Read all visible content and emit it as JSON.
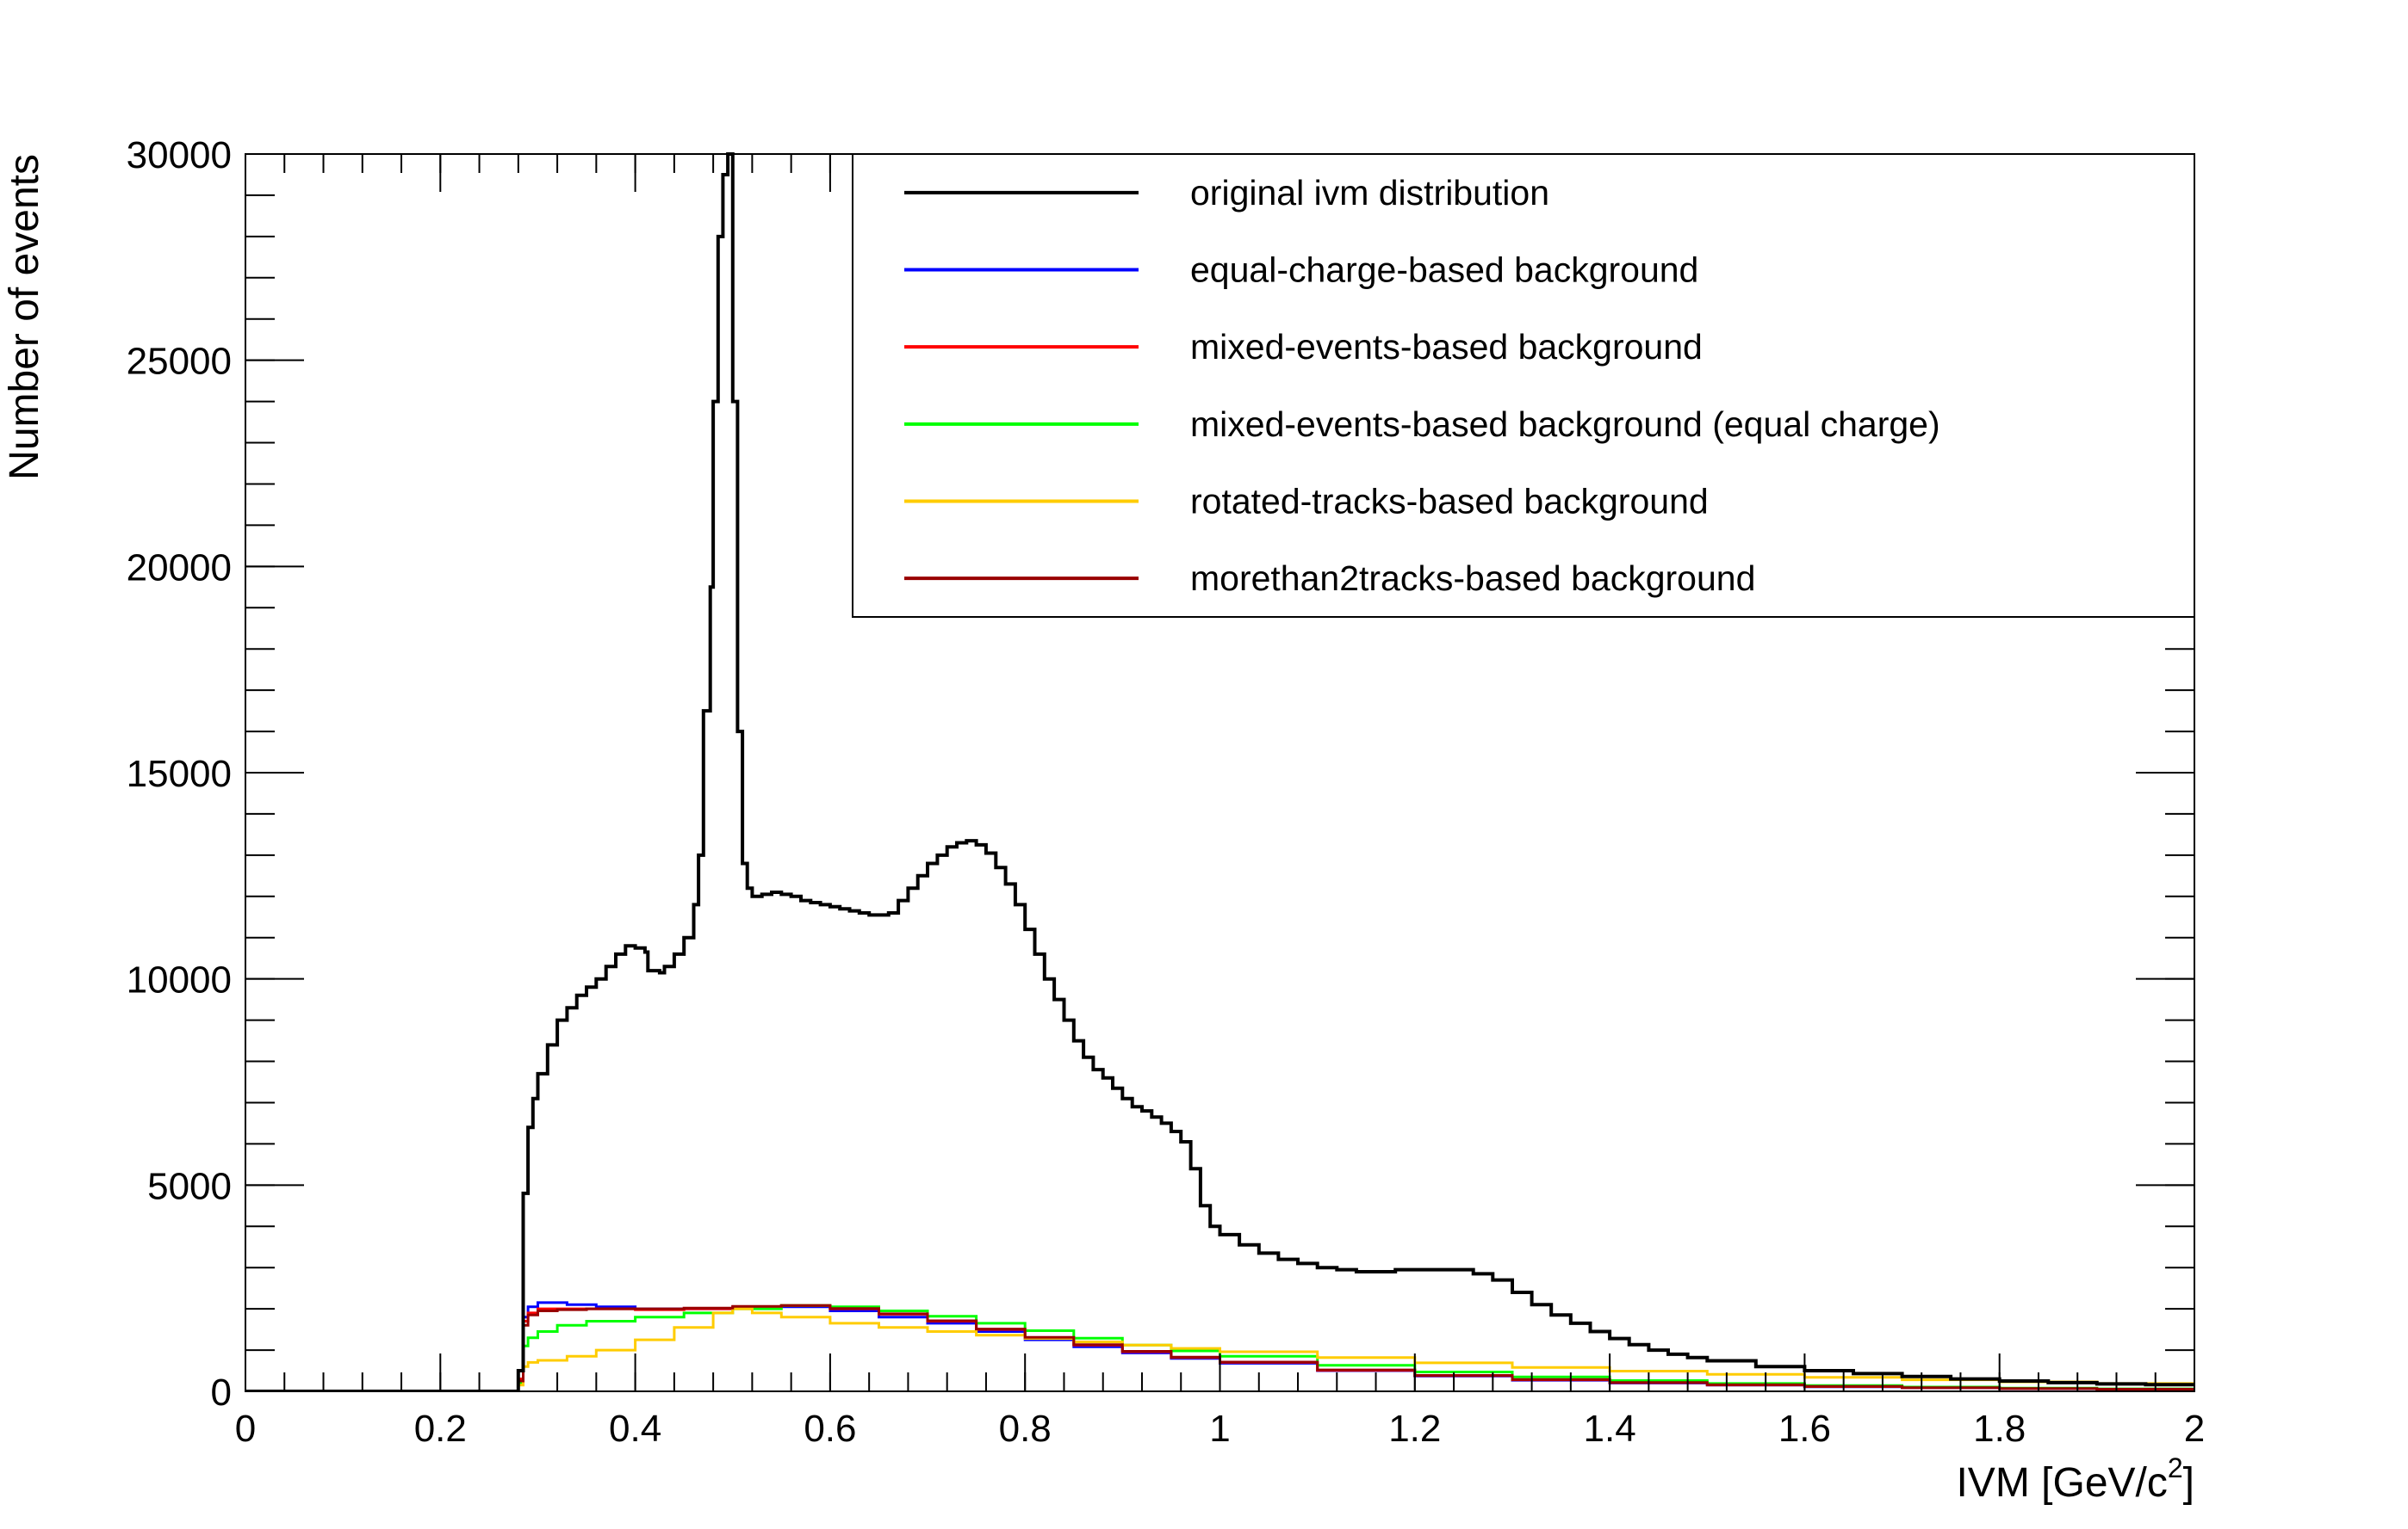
{
  "chart_data": {
    "type": "line",
    "title": "",
    "xlabel": "IVM [GeV/c",
    "xlabel_sup": "2",
    "xlabel_close": "]",
    "ylabel": "Number of events",
    "xlim": [
      0,
      2
    ],
    "ylim": [
      0,
      30000
    ],
    "x_ticks": [
      0,
      0.2,
      0.4,
      0.6,
      0.8,
      1,
      1.2,
      1.4,
      1.6,
      1.8,
      2
    ],
    "x_tick_labels": [
      "0",
      "0.2",
      "0.4",
      "0.6",
      "0.8",
      "1",
      "1.2",
      "1.4",
      "1.6",
      "1.8",
      "2"
    ],
    "y_ticks": [
      0,
      5000,
      10000,
      15000,
      20000,
      25000,
      30000
    ],
    "y_tick_labels": [
      "0",
      "5000",
      "10000",
      "15000",
      "20000",
      "25000",
      "30000"
    ],
    "grid": false,
    "legend_position": "top-right",
    "series": [
      {
        "name": "original ivm distribution",
        "color": "#000000",
        "points": [
          [
            0,
            0
          ],
          [
            0.276,
            0
          ],
          [
            0.28,
            500
          ],
          [
            0.285,
            4800
          ],
          [
            0.29,
            6400
          ],
          [
            0.295,
            7100
          ],
          [
            0.3,
            7700
          ],
          [
            0.31,
            8400
          ],
          [
            0.32,
            9000
          ],
          [
            0.33,
            9300
          ],
          [
            0.34,
            9600
          ],
          [
            0.35,
            9800
          ],
          [
            0.36,
            10000
          ],
          [
            0.37,
            10300
          ],
          [
            0.38,
            10600
          ],
          [
            0.39,
            10800
          ],
          [
            0.4,
            10750
          ],
          [
            0.41,
            10650
          ],
          [
            0.413,
            10200
          ],
          [
            0.425,
            10150
          ],
          [
            0.43,
            10300
          ],
          [
            0.44,
            10600
          ],
          [
            0.45,
            11000
          ],
          [
            0.46,
            11800
          ],
          [
            0.465,
            13000
          ],
          [
            0.47,
            16500
          ],
          [
            0.477,
            19500
          ],
          [
            0.48,
            24000
          ],
          [
            0.485,
            28000
          ],
          [
            0.49,
            29500
          ],
          [
            0.495,
            30000
          ],
          [
            0.5,
            24000
          ],
          [
            0.505,
            16000
          ],
          [
            0.51,
            12800
          ],
          [
            0.515,
            12200
          ],
          [
            0.52,
            12000
          ],
          [
            0.53,
            12050
          ],
          [
            0.54,
            12100
          ],
          [
            0.55,
            12050
          ],
          [
            0.56,
            12000
          ],
          [
            0.57,
            11900
          ],
          [
            0.58,
            11850
          ],
          [
            0.59,
            11800
          ],
          [
            0.6,
            11750
          ],
          [
            0.61,
            11700
          ],
          [
            0.62,
            11650
          ],
          [
            0.63,
            11600
          ],
          [
            0.64,
            11550
          ],
          [
            0.65,
            11550
          ],
          [
            0.66,
            11600
          ],
          [
            0.67,
            11900
          ],
          [
            0.68,
            12200
          ],
          [
            0.69,
            12500
          ],
          [
            0.7,
            12800
          ],
          [
            0.71,
            13000
          ],
          [
            0.72,
            13200
          ],
          [
            0.73,
            13300
          ],
          [
            0.74,
            13350
          ],
          [
            0.75,
            13250
          ],
          [
            0.76,
            13050
          ],
          [
            0.77,
            12700
          ],
          [
            0.78,
            12300
          ],
          [
            0.79,
            11800
          ],
          [
            0.8,
            11200
          ],
          [
            0.81,
            10600
          ],
          [
            0.82,
            10000
          ],
          [
            0.83,
            9500
          ],
          [
            0.84,
            9000
          ],
          [
            0.85,
            8500
          ],
          [
            0.86,
            8100
          ],
          [
            0.87,
            7800
          ],
          [
            0.88,
            7600
          ],
          [
            0.89,
            7350
          ],
          [
            0.9,
            7100
          ],
          [
            0.91,
            6900
          ],
          [
            0.92,
            6800
          ],
          [
            0.93,
            6650
          ],
          [
            0.94,
            6500
          ],
          [
            0.95,
            6300
          ],
          [
            0.96,
            6050
          ],
          [
            0.97,
            5400
          ],
          [
            0.98,
            4500
          ],
          [
            0.99,
            4000
          ],
          [
            1,
            3800
          ],
          [
            1.02,
            3550
          ],
          [
            1.04,
            3350
          ],
          [
            1.06,
            3200
          ],
          [
            1.08,
            3100
          ],
          [
            1.1,
            3000
          ],
          [
            1.12,
            2950
          ],
          [
            1.14,
            2900
          ],
          [
            1.16,
            2900
          ],
          [
            1.18,
            2950
          ],
          [
            1.2,
            2950
          ],
          [
            1.22,
            2950
          ],
          [
            1.24,
            2950
          ],
          [
            1.26,
            2850
          ],
          [
            1.28,
            2700
          ],
          [
            1.3,
            2400
          ],
          [
            1.32,
            2100
          ],
          [
            1.34,
            1850
          ],
          [
            1.36,
            1650
          ],
          [
            1.38,
            1450
          ],
          [
            1.4,
            1280
          ],
          [
            1.42,
            1130
          ],
          [
            1.44,
            1000
          ],
          [
            1.46,
            900
          ],
          [
            1.48,
            820
          ],
          [
            1.5,
            740
          ],
          [
            1.55,
            600
          ],
          [
            1.6,
            500
          ],
          [
            1.65,
            430
          ],
          [
            1.7,
            360
          ],
          [
            1.75,
            300
          ],
          [
            1.8,
            250
          ],
          [
            1.85,
            210
          ],
          [
            1.9,
            180
          ],
          [
            1.95,
            160
          ],
          [
            2,
            140
          ]
        ]
      },
      {
        "name": "equal-charge-based background",
        "color": "#0000ff",
        "points": [
          [
            0.276,
            0
          ],
          [
            0.28,
            300
          ],
          [
            0.285,
            1800
          ],
          [
            0.29,
            2050
          ],
          [
            0.3,
            2150
          ],
          [
            0.31,
            2150
          ],
          [
            0.33,
            2100
          ],
          [
            0.36,
            2050
          ],
          [
            0.4,
            2000
          ],
          [
            0.45,
            2000
          ],
          [
            0.5,
            2050
          ],
          [
            0.55,
            2050
          ],
          [
            0.6,
            1950
          ],
          [
            0.65,
            1800
          ],
          [
            0.7,
            1650
          ],
          [
            0.75,
            1450
          ],
          [
            0.8,
            1250
          ],
          [
            0.85,
            1080
          ],
          [
            0.9,
            930
          ],
          [
            0.95,
            800
          ],
          [
            1,
            680
          ],
          [
            1.1,
            500
          ],
          [
            1.2,
            370
          ],
          [
            1.3,
            270
          ],
          [
            1.4,
            200
          ],
          [
            1.5,
            150
          ],
          [
            1.6,
            110
          ],
          [
            1.7,
            85
          ],
          [
            1.8,
            65
          ],
          [
            1.9,
            50
          ],
          [
            2,
            40
          ]
        ]
      },
      {
        "name": "mixed-events-based background",
        "color": "#ff0000",
        "points": [
          [
            0.276,
            0
          ],
          [
            0.28,
            300
          ],
          [
            0.285,
            1700
          ],
          [
            0.29,
            1900
          ],
          [
            0.3,
            2000
          ],
          [
            0.32,
            2000
          ],
          [
            0.35,
            2000
          ],
          [
            0.4,
            1980
          ],
          [
            0.45,
            2000
          ],
          [
            0.5,
            2050
          ],
          [
            0.55,
            2080
          ],
          [
            0.6,
            2000
          ],
          [
            0.65,
            1870
          ],
          [
            0.7,
            1700
          ],
          [
            0.75,
            1500
          ],
          [
            0.8,
            1300
          ],
          [
            0.85,
            1120
          ],
          [
            0.9,
            960
          ],
          [
            0.95,
            820
          ],
          [
            1,
            700
          ],
          [
            1.1,
            510
          ],
          [
            1.2,
            380
          ],
          [
            1.3,
            280
          ],
          [
            1.4,
            210
          ],
          [
            1.5,
            155
          ],
          [
            1.6,
            115
          ],
          [
            1.7,
            88
          ],
          [
            1.8,
            68
          ],
          [
            1.9,
            52
          ],
          [
            2,
            42
          ]
        ]
      },
      {
        "name": "mixed-events-based background (equal charge)",
        "color": "#00ff00",
        "points": [
          [
            0.276,
            0
          ],
          [
            0.28,
            200
          ],
          [
            0.285,
            1100
          ],
          [
            0.29,
            1300
          ],
          [
            0.3,
            1450
          ],
          [
            0.32,
            1600
          ],
          [
            0.35,
            1700
          ],
          [
            0.4,
            1800
          ],
          [
            0.45,
            1900
          ],
          [
            0.5,
            2000
          ],
          [
            0.55,
            2080
          ],
          [
            0.6,
            2050
          ],
          [
            0.65,
            1950
          ],
          [
            0.7,
            1820
          ],
          [
            0.75,
            1650
          ],
          [
            0.8,
            1470
          ],
          [
            0.85,
            1290
          ],
          [
            0.9,
            1120
          ],
          [
            0.95,
            980
          ],
          [
            1,
            850
          ],
          [
            1.1,
            630
          ],
          [
            1.2,
            470
          ],
          [
            1.3,
            350
          ],
          [
            1.4,
            260
          ],
          [
            1.5,
            190
          ],
          [
            1.6,
            140
          ],
          [
            1.7,
            105
          ],
          [
            1.8,
            80
          ],
          [
            1.9,
            60
          ],
          [
            2,
            45
          ]
        ]
      },
      {
        "name": "rotated-tracks-based background",
        "color": "#ffcc00",
        "points": [
          [
            0.276,
            0
          ],
          [
            0.28,
            150
          ],
          [
            0.285,
            600
          ],
          [
            0.29,
            700
          ],
          [
            0.3,
            750
          ],
          [
            0.33,
            850
          ],
          [
            0.36,
            1000
          ],
          [
            0.4,
            1250
          ],
          [
            0.44,
            1550
          ],
          [
            0.48,
            1900
          ],
          [
            0.5,
            2000
          ],
          [
            0.52,
            1900
          ],
          [
            0.55,
            1800
          ],
          [
            0.6,
            1650
          ],
          [
            0.65,
            1550
          ],
          [
            0.7,
            1450
          ],
          [
            0.75,
            1360
          ],
          [
            0.8,
            1280
          ],
          [
            0.85,
            1200
          ],
          [
            0.9,
            1120
          ],
          [
            0.95,
            1040
          ],
          [
            1,
            960
          ],
          [
            1.1,
            820
          ],
          [
            1.2,
            690
          ],
          [
            1.3,
            580
          ],
          [
            1.4,
            490
          ],
          [
            1.5,
            410
          ],
          [
            1.6,
            340
          ],
          [
            1.7,
            280
          ],
          [
            1.8,
            230
          ],
          [
            1.9,
            190
          ],
          [
            2,
            160
          ]
        ]
      },
      {
        "name": "morethan2tracks-based background",
        "color": "#990000",
        "points": [
          [
            0.276,
            0
          ],
          [
            0.28,
            250
          ],
          [
            0.285,
            1600
          ],
          [
            0.29,
            1850
          ],
          [
            0.3,
            1950
          ],
          [
            0.32,
            1980
          ],
          [
            0.35,
            2000
          ],
          [
            0.4,
            2000
          ],
          [
            0.45,
            2020
          ],
          [
            0.5,
            2060
          ],
          [
            0.55,
            2080
          ],
          [
            0.6,
            2010
          ],
          [
            0.65,
            1880
          ],
          [
            0.7,
            1710
          ],
          [
            0.75,
            1510
          ],
          [
            0.8,
            1310
          ],
          [
            0.85,
            1130
          ],
          [
            0.9,
            970
          ],
          [
            0.95,
            830
          ],
          [
            1,
            710
          ],
          [
            1.1,
            520
          ],
          [
            1.2,
            385
          ],
          [
            1.3,
            285
          ],
          [
            1.4,
            212
          ],
          [
            1.5,
            158
          ],
          [
            1.6,
            118
          ],
          [
            1.7,
            90
          ],
          [
            1.8,
            69
          ],
          [
            1.9,
            53
          ],
          [
            2,
            43
          ]
        ]
      }
    ]
  }
}
